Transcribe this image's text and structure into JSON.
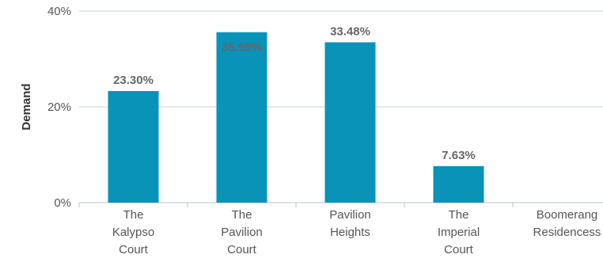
{
  "chart_data": {
    "type": "bar",
    "title": "",
    "xlabel": "",
    "ylabel": "Demand",
    "categories": [
      [
        "The",
        "Kalypso",
        "Court"
      ],
      [
        "The",
        "Pavilion",
        "Court"
      ],
      [
        "Pavilion",
        "Heights"
      ],
      [
        "The",
        "Imperial",
        "Court"
      ],
      [
        "Boomerang",
        "Residencess"
      ]
    ],
    "values": [
      23.3,
      35.59,
      33.48,
      7.63,
      0
    ],
    "data_labels": [
      "23.30%",
      "35.59%",
      "33.48%",
      "7.63%",
      ""
    ],
    "yticks": [
      {
        "value": 0,
        "label": "0%"
      },
      {
        "value": 20,
        "label": "20%"
      },
      {
        "value": 40,
        "label": "40%"
      }
    ],
    "ylim": [
      0,
      40
    ],
    "grid": true,
    "legend": "none",
    "colors": {
      "bar": "#0a93b8",
      "grid": "#c8d1d8",
      "axis": "#b7c3cc"
    }
  }
}
